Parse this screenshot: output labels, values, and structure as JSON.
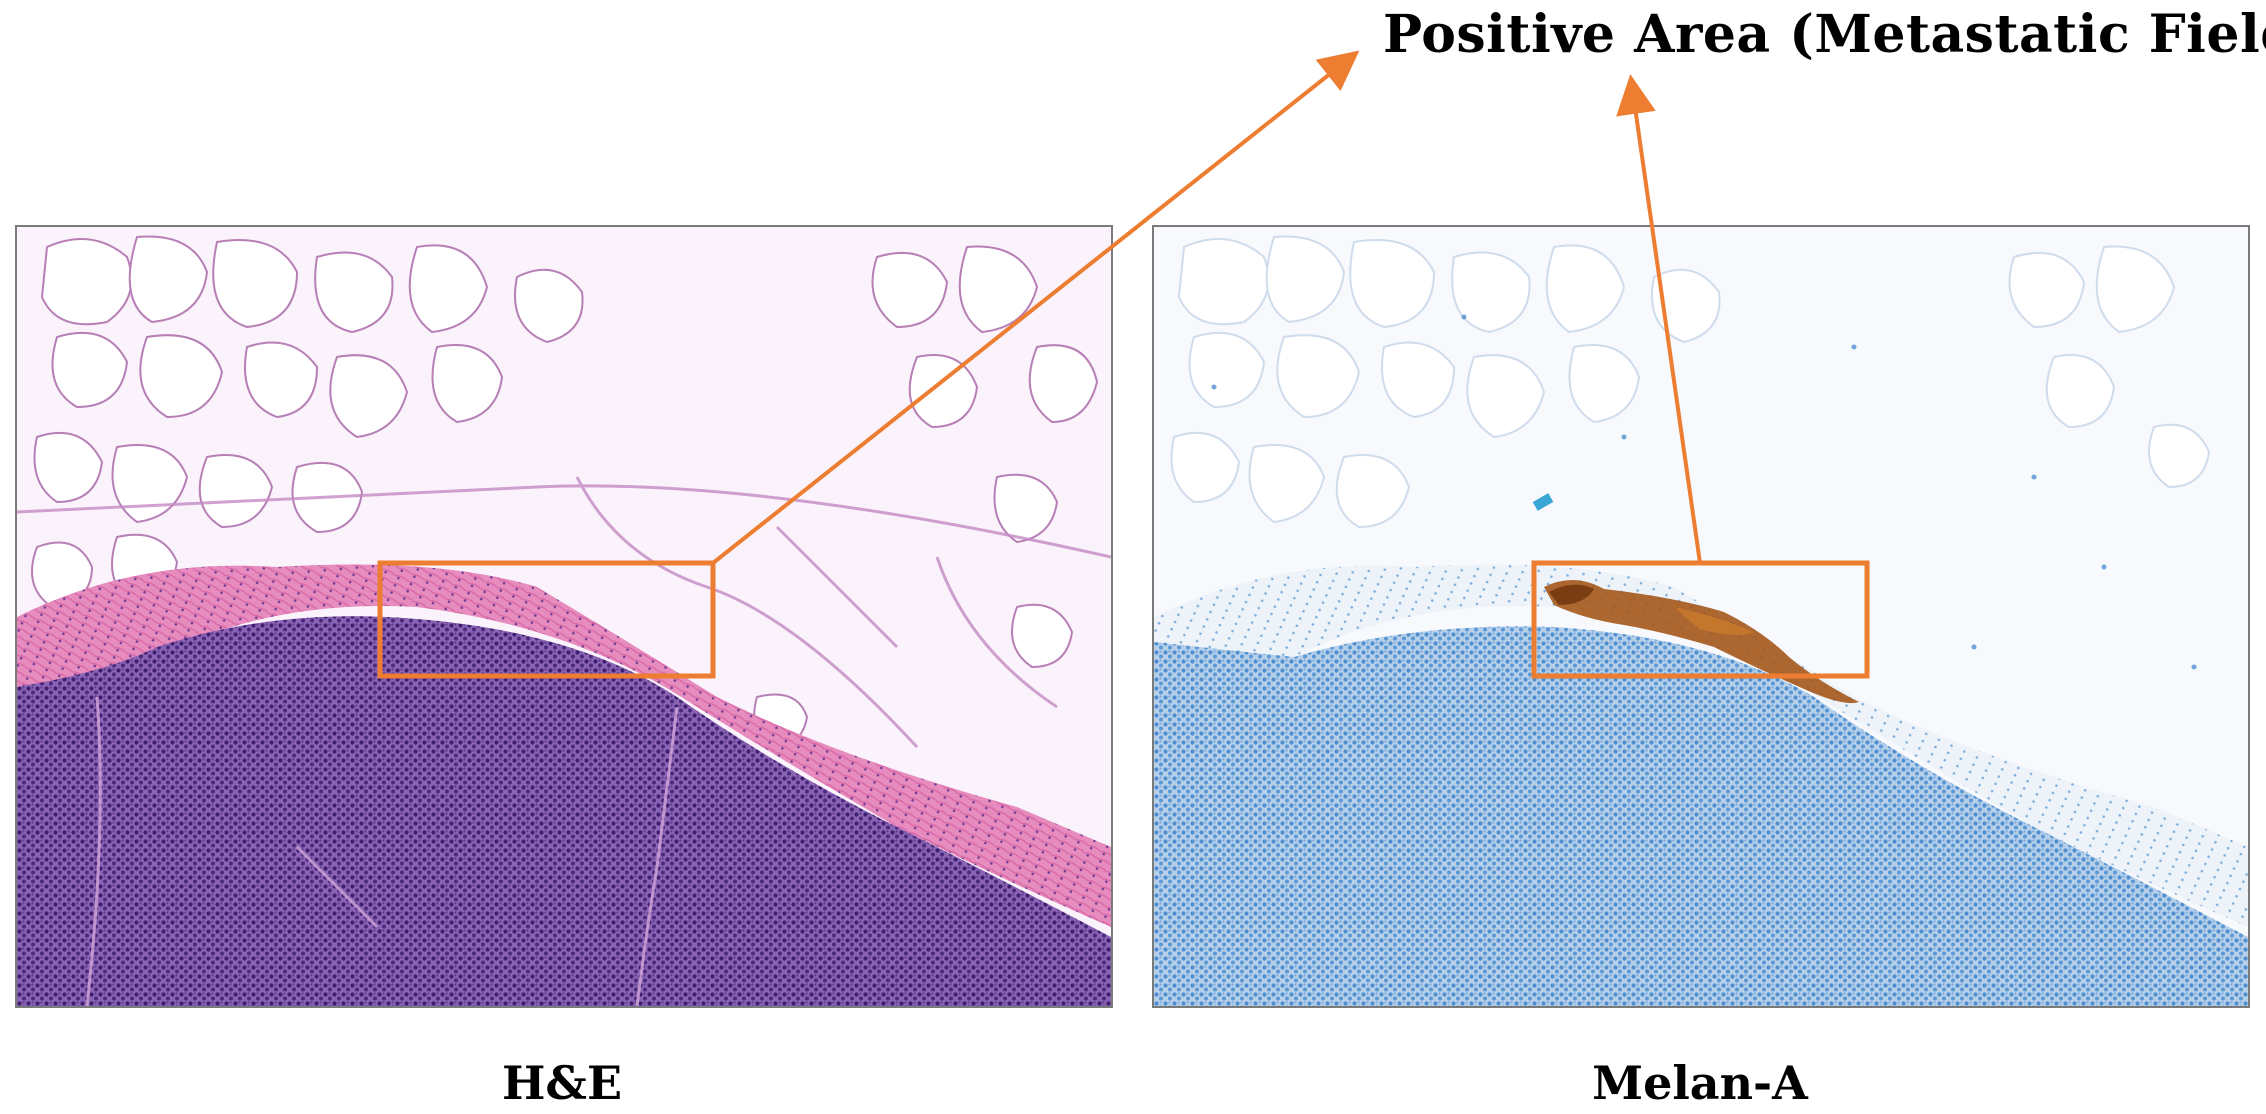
{
  "title": "Positive Area (Metastatic Field)",
  "panels": [
    {
      "stain": "H&E",
      "caption": "H&E"
    },
    {
      "stain": "Melan-A",
      "caption": "Melan-A"
    }
  ],
  "colors": {
    "annotation": "#ED7D31",
    "he_adipose_bg": "#fbf4fb",
    "he_fat_membrane": "#b77fb6",
    "he_capsule": "#e585b8",
    "he_lymphocytes": "#6a3f97",
    "ihc_bg": "#f7f9fc",
    "ihc_nuclei": "#4f8fd0",
    "ihc_positive": "#a4561a"
  }
}
